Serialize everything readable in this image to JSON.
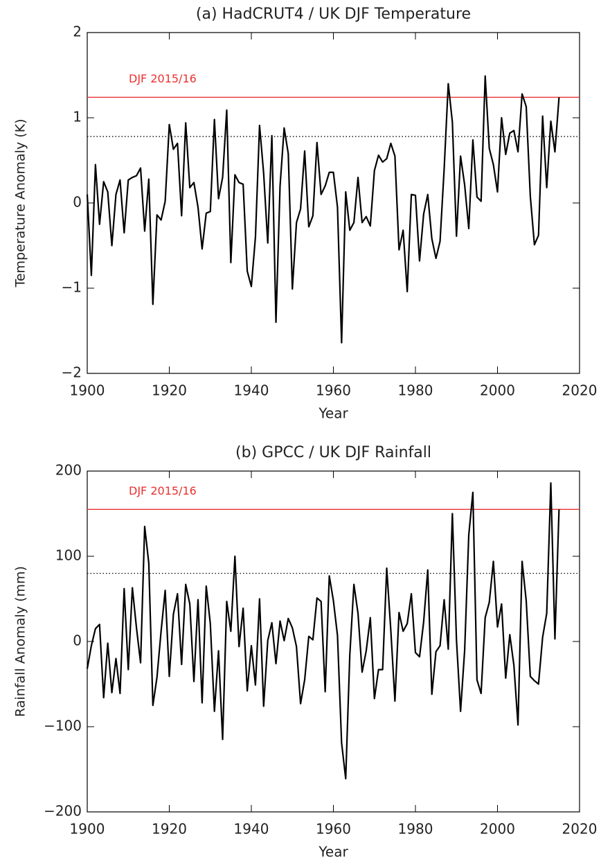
{
  "chart_data": [
    {
      "type": "line",
      "title": "(a) HadCRUT4 / UK DJF Temperature",
      "x_label": "Year",
      "y_label": "Temperature Anomaly (K)",
      "x": [
        1900,
        1901,
        1902,
        1903,
        1904,
        1905,
        1906,
        1907,
        1908,
        1909,
        1910,
        1911,
        1912,
        1913,
        1914,
        1915,
        1916,
        1917,
        1918,
        1919,
        1920,
        1921,
        1922,
        1923,
        1924,
        1925,
        1926,
        1927,
        1928,
        1929,
        1930,
        1931,
        1932,
        1933,
        1934,
        1935,
        1936,
        1937,
        1938,
        1939,
        1940,
        1941,
        1942,
        1943,
        1944,
        1945,
        1946,
        1947,
        1948,
        1949,
        1950,
        1951,
        1952,
        1953,
        1954,
        1955,
        1956,
        1957,
        1958,
        1959,
        1960,
        1961,
        1962,
        1963,
        1964,
        1965,
        1966,
        1967,
        1968,
        1969,
        1970,
        1971,
        1972,
        1973,
        1974,
        1975,
        1976,
        1977,
        1978,
        1979,
        1980,
        1981,
        1982,
        1983,
        1984,
        1985,
        1986,
        1987,
        1988,
        1989,
        1990,
        1991,
        1992,
        1993,
        1994,
        1995,
        1996,
        1997,
        1998,
        1999,
        2000,
        2001,
        2002,
        2003,
        2004,
        2005,
        2006,
        2007,
        2008,
        2009,
        2010,
        2011,
        2012,
        2013,
        2014,
        2015
      ],
      "values": [
        0.1,
        -0.85,
        0.45,
        -0.25,
        0.25,
        0.13,
        -0.5,
        0.1,
        0.27,
        -0.35,
        0.27,
        0.3,
        0.32,
        0.41,
        -0.33,
        0.28,
        -1.19,
        -0.14,
        -0.2,
        0.02,
        0.92,
        0.63,
        0.7,
        -0.15,
        0.94,
        0.18,
        0.24,
        -0.05,
        -0.54,
        -0.12,
        -0.1,
        0.98,
        0.05,
        0.3,
        1.09,
        -0.7,
        0.33,
        0.24,
        0.22,
        -0.8,
        -0.98,
        -0.4,
        0.91,
        0.35,
        -0.47,
        0.79,
        -1.4,
        0.2,
        0.88,
        0.58,
        -1.01,
        -0.23,
        -0.07,
        0.61,
        -0.28,
        -0.15,
        0.71,
        0.1,
        0.2,
        0.36,
        0.36,
        -0.05,
        -1.64,
        0.13,
        -0.32,
        -0.23,
        0.3,
        -0.23,
        -0.16,
        -0.27,
        0.38,
        0.56,
        0.48,
        0.52,
        0.7,
        0.55,
        -0.55,
        -0.32,
        -1.04,
        0.1,
        0.09,
        -0.68,
        -0.13,
        0.1,
        -0.42,
        -0.65,
        -0.45,
        0.4,
        1.4,
        0.95,
        -0.39,
        0.55,
        0.21,
        -0.3,
        0.74,
        0.07,
        0.02,
        1.49,
        0.64,
        0.45,
        0.13,
        1.0,
        0.57,
        0.82,
        0.85,
        0.6,
        1.28,
        1.13,
        0.08,
        -0.49,
        -0.38,
        1.02,
        0.18,
        0.96,
        0.6,
        1.24
      ],
      "color": "#000000",
      "xlim": [
        1900,
        2020
      ],
      "xticks": [
        1900,
        1920,
        1940,
        1960,
        1980,
        2000,
        2020
      ],
      "ylim": [
        -2,
        2
      ],
      "yticks": [
        {
          "value": -2,
          "label": "−2"
        },
        {
          "value": -1,
          "label": "−1"
        },
        0,
        1,
        2
      ],
      "hlines": [
        {
          "value": 1.24,
          "color": "#e8312f",
          "style": "solid",
          "label": "DJF 2015/16"
        },
        {
          "value": 0.78,
          "color": "#000000",
          "style": "dotted"
        }
      ]
    },
    {
      "type": "line",
      "title": "(b) GPCC / UK DJF Rainfall",
      "x_label": "Year",
      "y_label": "Rainfall Anomaly (mm)",
      "x": [
        1900,
        1901,
        1902,
        1903,
        1904,
        1905,
        1906,
        1907,
        1908,
        1909,
        1910,
        1911,
        1912,
        1913,
        1914,
        1915,
        1916,
        1917,
        1918,
        1919,
        1920,
        1921,
        1922,
        1923,
        1924,
        1925,
        1926,
        1927,
        1928,
        1929,
        1930,
        1931,
        1932,
        1933,
        1934,
        1935,
        1936,
        1937,
        1938,
        1939,
        1940,
        1941,
        1942,
        1943,
        1944,
        1945,
        1946,
        1947,
        1948,
        1949,
        1950,
        1951,
        1952,
        1953,
        1954,
        1955,
        1956,
        1957,
        1958,
        1959,
        1960,
        1961,
        1962,
        1963,
        1964,
        1965,
        1966,
        1967,
        1968,
        1969,
        1970,
        1971,
        1972,
        1973,
        1974,
        1975,
        1976,
        1977,
        1978,
        1979,
        1980,
        1981,
        1982,
        1983,
        1984,
        1985,
        1986,
        1987,
        1988,
        1989,
        1990,
        1991,
        1992,
        1993,
        1994,
        1995,
        1996,
        1997,
        1998,
        1999,
        2000,
        2001,
        2002,
        2003,
        2004,
        2005,
        2006,
        2007,
        2008,
        2009,
        2010,
        2011,
        2012,
        2013,
        2014,
        2015
      ],
      "values": [
        -32,
        -5,
        15,
        20,
        -66,
        -2,
        -60,
        -20,
        -61,
        62,
        -33,
        63,
        16,
        -25,
        135,
        92,
        -75,
        -42,
        12,
        60,
        -41,
        32,
        56,
        -27,
        67,
        44,
        -47,
        49,
        -72,
        65,
        21,
        -82,
        -11,
        -115,
        47,
        12,
        100,
        -6,
        39,
        -58,
        -5,
        -51,
        50,
        -76,
        1,
        22,
        -26,
        24,
        1,
        27,
        16,
        -6,
        -73,
        -45,
        6,
        2,
        51,
        47,
        -59,
        77,
        48,
        7,
        -119,
        -161,
        -16,
        67,
        33,
        -36,
        -11,
        28,
        -67,
        -33,
        -33,
        86,
        13,
        -70,
        34,
        12,
        21,
        56,
        -13,
        -18,
        23,
        84,
        -62,
        -12,
        -5,
        49,
        -9,
        150,
        2,
        -82,
        -10,
        125,
        175,
        -45,
        -61,
        28,
        46,
        94,
        17,
        44,
        -43,
        8,
        -28,
        -98,
        94,
        48,
        -41,
        -46,
        -50,
        5,
        33,
        186,
        3,
        155
      ],
      "color": "#000000",
      "xlim": [
        1900,
        2020
      ],
      "xticks": [
        1900,
        1920,
        1940,
        1960,
        1980,
        2000,
        2020
      ],
      "ylim": [
        -200,
        200
      ],
      "yticks": [
        {
          "value": -200,
          "label": "−200"
        },
        {
          "value": -100,
          "label": "−100"
        },
        0,
        100,
        200
      ],
      "hlines": [
        {
          "value": 155,
          "color": "#e8312f",
          "style": "solid",
          "label": "DJF 2015/16"
        },
        {
          "value": 80,
          "color": "#000000",
          "style": "dotted"
        }
      ]
    }
  ]
}
